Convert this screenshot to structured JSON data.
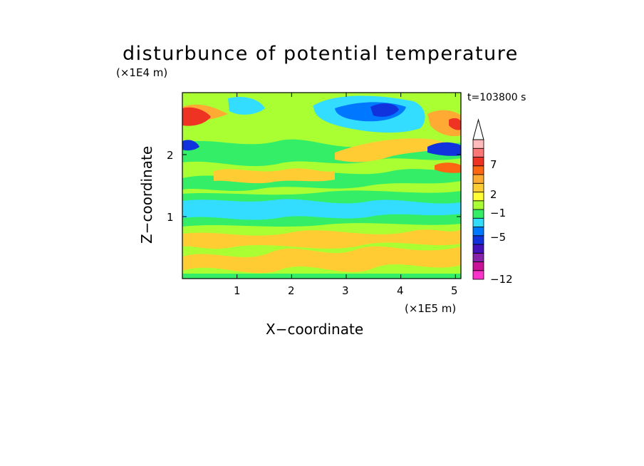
{
  "chart_data": {
    "type": "heatmap",
    "title": "disturbunce of potential temperature",
    "xlabel": "X−coordinate",
    "ylabel": "Z−coordinate",
    "x_unit": "(×1E5 m)",
    "y_unit": "(×1E4 m)",
    "time_label": "t=103800 s",
    "xlim": [
      0,
      5.1
    ],
    "ylim": [
      0,
      3.0
    ],
    "x_ticks": [
      {
        "value": 1,
        "label": "1"
      },
      {
        "value": 2,
        "label": "2"
      },
      {
        "value": 3,
        "label": "3"
      },
      {
        "value": 4,
        "label": "4"
      },
      {
        "value": 5,
        "label": "5"
      }
    ],
    "y_ticks": [
      {
        "value": 1,
        "label": "1"
      },
      {
        "value": 2,
        "label": "2"
      }
    ],
    "colorbar": {
      "levels": [
        -12,
        -11,
        -9,
        -7,
        -5,
        -4,
        -3,
        -1,
        0,
        1,
        2,
        4,
        5,
        7,
        8,
        10
      ],
      "labels": [
        {
          "value": 7,
          "text": "7"
        },
        {
          "value": 2,
          "text": "2"
        },
        {
          "value": -1,
          "text": "−1"
        },
        {
          "value": -5,
          "text": "−5"
        },
        {
          "value": -12,
          "text": "−12"
        }
      ],
      "colors": [
        "#ff33cc",
        "#cc1199",
        "#8822aa",
        "#4411bb",
        "#1133dd",
        "#0077ff",
        "#33ddff",
        "#33ee66",
        "#aaff33",
        "#ffff33",
        "#ffcc33",
        "#ffaa33",
        "#ff6611",
        "#ee3322",
        "#ff7777",
        "#ffbbbb"
      ],
      "extend_max": true
    }
  }
}
